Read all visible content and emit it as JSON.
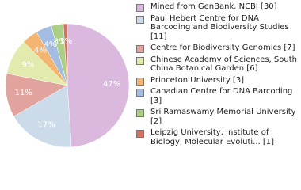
{
  "chart_data": {
    "type": "pie",
    "categories": [
      "Mined from GenBank, NCBI [30]",
      "Paul Hebert Centre for DNA Barcoding and Biodiversity Studies [11]",
      "Centre for Biodiversity Genomics [7]",
      "Chinese Academy of Sciences, South China Botanical Garden [6]",
      "Princeton University [3]",
      "Canadian Centre for DNA Barcoding [3]",
      "Sri Ramaswamy Memorial University [2]",
      "Leipzig University, Institute of Biology, Molecular Evoluti... [1]"
    ],
    "values": [
      47,
      17,
      11,
      9,
      4,
      4,
      3,
      1
    ],
    "value_labels": [
      "47%",
      "17%",
      "11%",
      "9%",
      "4%",
      "4%",
      "3%",
      "1%"
    ],
    "colors": [
      "#dbb9df",
      "#ccdbe9",
      "#e0a39d",
      "#e2eaae",
      "#f3b571",
      "#a3bce2",
      "#aacf85",
      "#d6705f"
    ]
  }
}
